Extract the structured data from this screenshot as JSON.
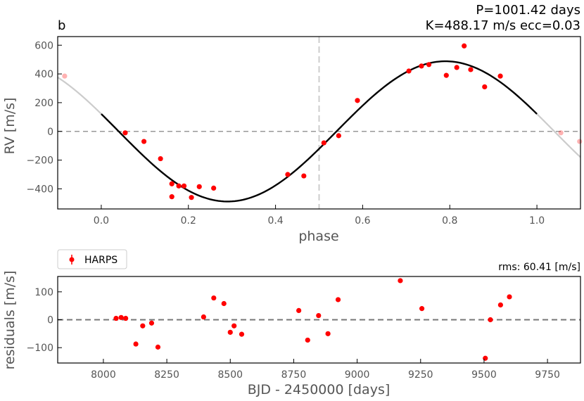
{
  "colors": {
    "data": "#ff0000",
    "model": "#000000",
    "model_ext": "#cccccc",
    "zero_line": "#999999",
    "phase_marker": "#cccccc",
    "resid_zero": "#777777"
  },
  "chart_data": [
    {
      "type": "scatter",
      "panel_label": "b",
      "annotation": {
        "line1": "P=1001.42 days",
        "line2": "K=488.17 m/s  ecc=0.03"
      },
      "xlabel": "phase",
      "ylabel": "RV [m/s]",
      "xlim": [
        -0.1,
        1.1
      ],
      "ylim": [
        -540,
        660
      ],
      "xticks": [
        0.0,
        0.2,
        0.4,
        0.6,
        0.8,
        1.0
      ],
      "xtick_labels": [
        "0.0",
        "0.2",
        "0.4",
        "0.6",
        "0.8",
        "1.0"
      ],
      "yticks": [
        -400,
        -200,
        0,
        200,
        400,
        600
      ],
      "ytick_labels": [
        "−400",
        "−200",
        "0",
        "200",
        "400",
        "600"
      ],
      "vline_phase": 0.5,
      "model": {
        "K": 488.17,
        "peak_phase": 0.79
      },
      "series": [
        {
          "name": "HARPS",
          "x": [
            0.055,
            0.098,
            0.136,
            0.162,
            0.162,
            0.178,
            0.19,
            0.207,
            0.225,
            0.258,
            0.428,
            0.465,
            0.511,
            0.545,
            0.588,
            0.706,
            0.735,
            0.752,
            0.792,
            0.816,
            0.833,
            0.848,
            0.88,
            0.916
          ],
          "y": [
            -10,
            -70,
            -190,
            -365,
            -455,
            -380,
            -380,
            -460,
            -385,
            -395,
            -300,
            -310,
            -80,
            -30,
            215,
            420,
            455,
            465,
            390,
            445,
            595,
            430,
            310,
            385
          ]
        },
        {
          "name": "HARPS (phase-wrapped)",
          "x": [
            -0.084,
            1.055,
            1.098
          ],
          "y": [
            385,
            -10,
            -70
          ]
        }
      ]
    },
    {
      "type": "scatter",
      "xlabel": "BJD - 2450000 [days]",
      "ylabel": "residuals [m/s]",
      "rms_label": "rms: 60.41 [m/s]",
      "legend": [
        "HARPS"
      ],
      "xlim": [
        7820,
        9880
      ],
      "ylim": [
        -155,
        155
      ],
      "xticks": [
        8000,
        8250,
        8500,
        8750,
        9000,
        9250,
        9500,
        9750
      ],
      "xtick_labels": [
        "8000",
        "8250",
        "8500",
        "8750",
        "9000",
        "9250",
        "9500",
        "9750"
      ],
      "yticks": [
        -100,
        0,
        100
      ],
      "ytick_labels": [
        "−100",
        "0",
        "100"
      ],
      "series": [
        {
          "name": "HARPS",
          "x": [
            8050,
            8070,
            8088,
            8128,
            8155,
            8190,
            8215,
            8395,
            8435,
            8475,
            8500,
            8515,
            8545,
            8770,
            8805,
            8848,
            8885,
            8925,
            9170,
            9255,
            9505,
            9525,
            9565,
            9600
          ],
          "y": [
            5,
            8,
            5,
            -87,
            -22,
            -12,
            -98,
            10,
            78,
            58,
            -45,
            -22,
            -52,
            33,
            -73,
            15,
            -50,
            72,
            140,
            40,
            -138,
            0,
            53,
            82
          ]
        }
      ]
    }
  ]
}
